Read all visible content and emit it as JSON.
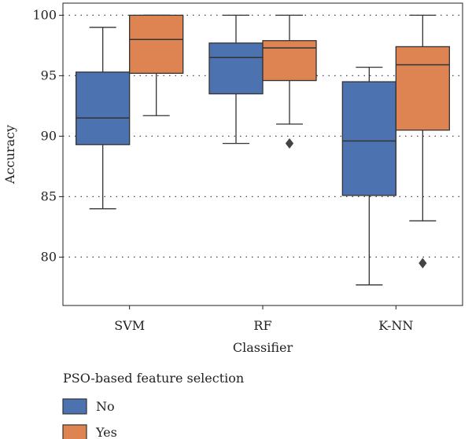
{
  "chart_data": {
    "type": "box",
    "xlabel": "Classifier",
    "ylabel": "Accuracy",
    "ylim": [
      76,
      101
    ],
    "yticks": [
      80,
      85,
      90,
      95,
      100
    ],
    "grid": "horizontal-dotted",
    "categories": [
      "SVM",
      "RF",
      "K-NN"
    ],
    "legend": {
      "title": "PSO-based feature selection",
      "placement": "bottom-left",
      "entries": [
        "No",
        "Yes"
      ]
    },
    "series": [
      {
        "name": "No",
        "color": "#4c72b0",
        "boxes": [
          {
            "category": "SVM",
            "whislo": 84.0,
            "q1": 89.3,
            "med": 91.5,
            "q3": 95.3,
            "whishi": 99.0,
            "fliers": []
          },
          {
            "category": "RF",
            "whislo": 89.4,
            "q1": 93.5,
            "med": 96.5,
            "q3": 97.7,
            "whishi": 100.0,
            "fliers": []
          },
          {
            "category": "K-NN",
            "whislo": 77.7,
            "q1": 85.1,
            "med": 89.6,
            "q3": 94.5,
            "whishi": 95.7,
            "fliers": []
          }
        ]
      },
      {
        "name": "Yes",
        "color": "#dd8452",
        "boxes": [
          {
            "category": "SVM",
            "whislo": 91.7,
            "q1": 95.2,
            "med": 98.0,
            "q3": 100.0,
            "whishi": 100.0,
            "fliers": []
          },
          {
            "category": "RF",
            "whislo": 91.0,
            "q1": 94.6,
            "med": 97.3,
            "q3": 97.9,
            "whishi": 100.0,
            "fliers": [
              89.4
            ]
          },
          {
            "category": "K-NN",
            "whislo": 83.0,
            "q1": 90.5,
            "med": 95.9,
            "q3": 97.4,
            "whishi": 100.0,
            "fliers": [
              79.5
            ]
          }
        ]
      }
    ]
  }
}
